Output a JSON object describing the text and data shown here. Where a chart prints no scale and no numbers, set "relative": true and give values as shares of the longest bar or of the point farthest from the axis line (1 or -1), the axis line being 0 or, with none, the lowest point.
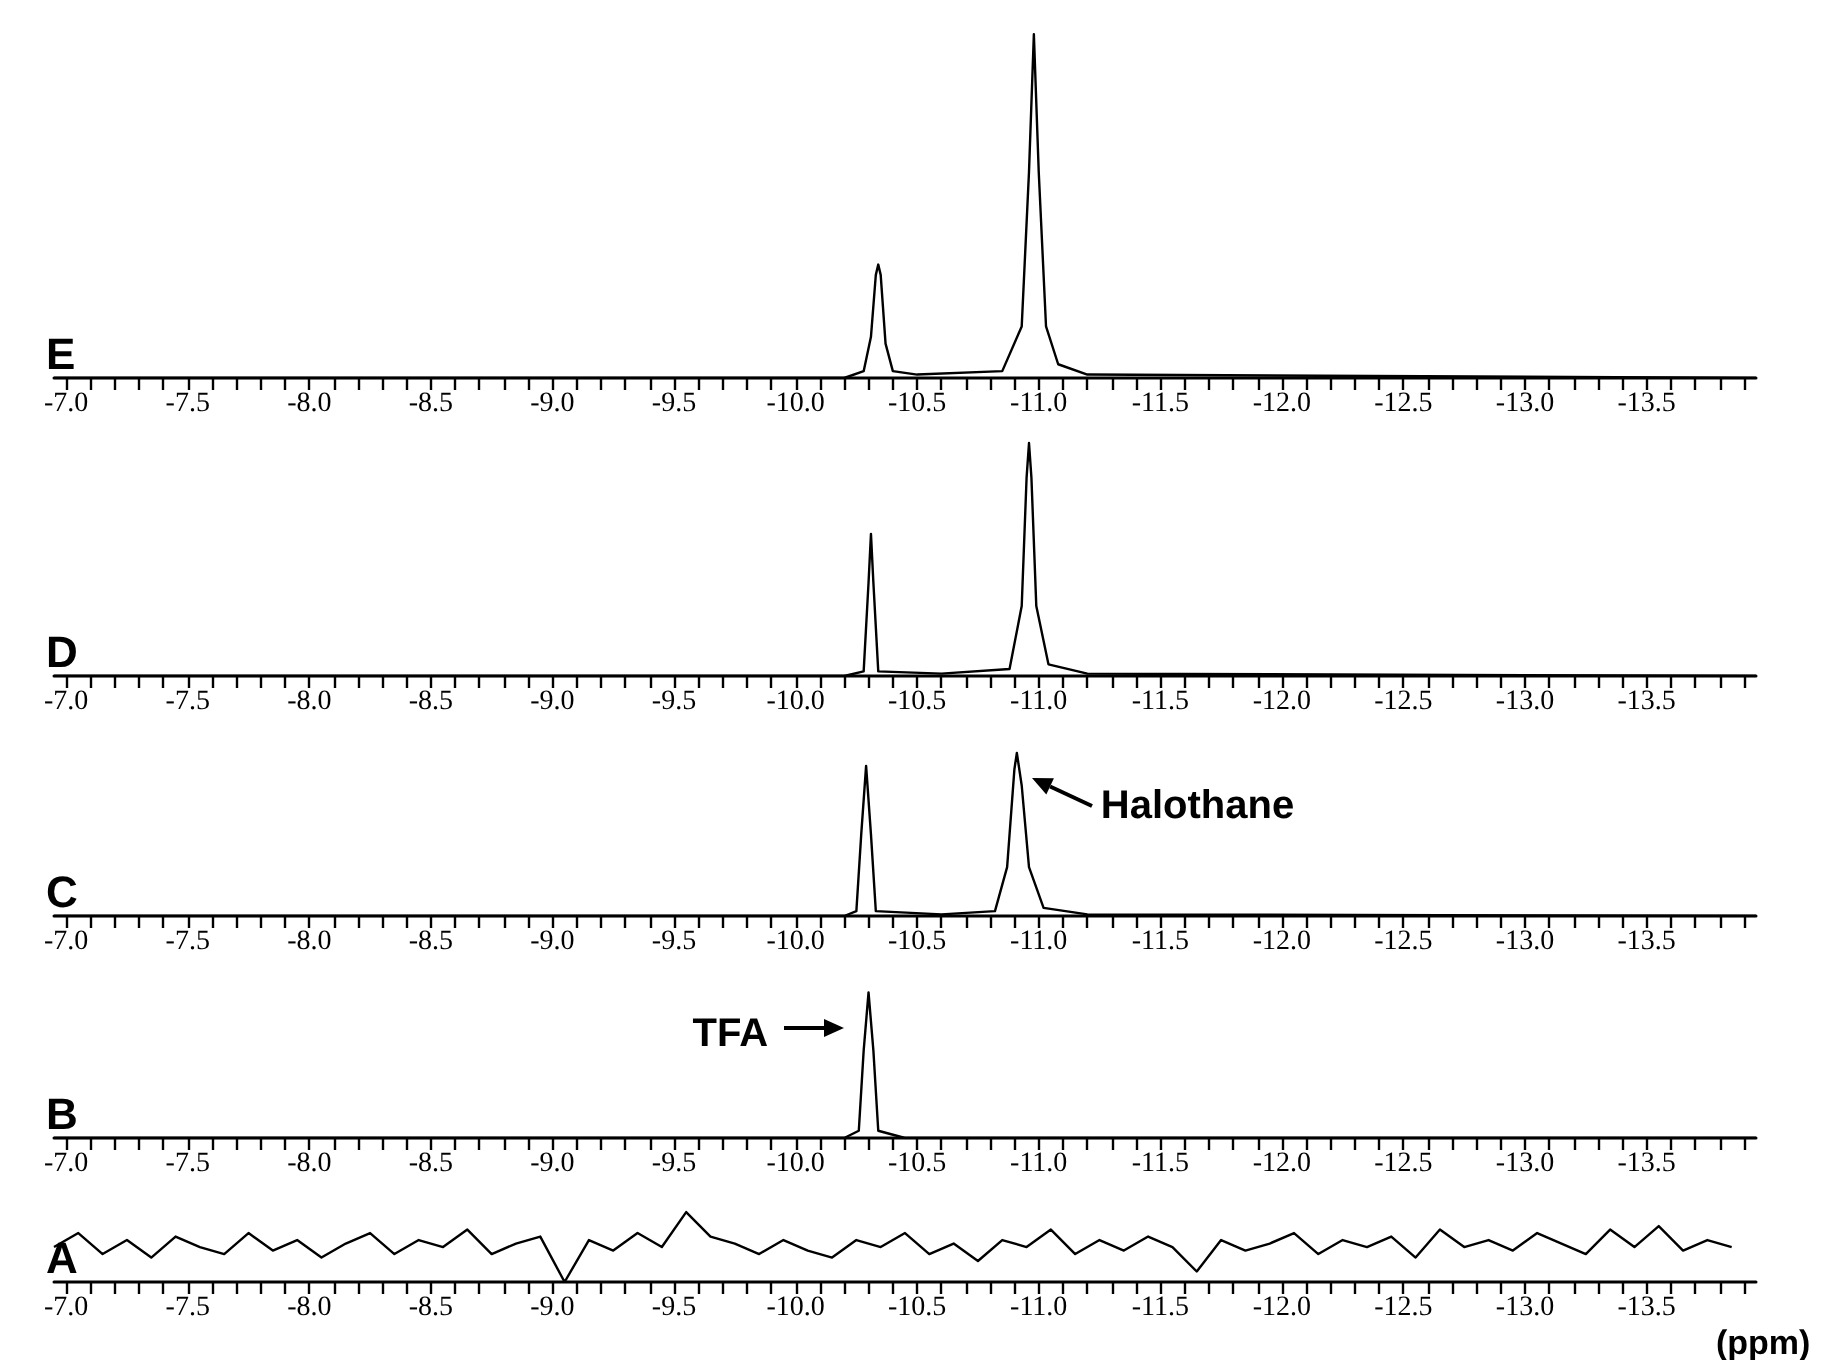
{
  "chart_data": [
    {
      "type": "line",
      "title": "E",
      "relative": true,
      "xlim": [
        -6.95,
        -13.95
      ],
      "xticks": [
        {
          "value": -7.0,
          "label": "-7.0"
        },
        {
          "value": -7.1,
          "label": null
        },
        {
          "value": -7.2,
          "label": null
        },
        {
          "value": -7.3,
          "label": null
        },
        {
          "value": -7.4,
          "label": null
        },
        {
          "value": -7.5,
          "label": "-7.5"
        },
        {
          "value": -7.6,
          "label": null
        },
        {
          "value": -7.7,
          "label": null
        },
        {
          "value": -7.8,
          "label": null
        },
        {
          "value": -7.9,
          "label": null
        },
        {
          "value": -8.0,
          "label": "-8.0"
        },
        {
          "value": -8.1,
          "label": null
        },
        {
          "value": -8.2,
          "label": null
        },
        {
          "value": -8.3,
          "label": null
        },
        {
          "value": -8.4,
          "label": null
        },
        {
          "value": -8.5,
          "label": "-8.5"
        },
        {
          "value": -8.6,
          "label": null
        },
        {
          "value": -8.7,
          "label": null
        },
        {
          "value": -8.8,
          "label": null
        },
        {
          "value": -8.9,
          "label": null
        },
        {
          "value": -9.0,
          "label": "-9.0"
        },
        {
          "value": -9.1,
          "label": null
        },
        {
          "value": -9.2,
          "label": null
        },
        {
          "value": -9.3,
          "label": null
        },
        {
          "value": -9.4,
          "label": null
        },
        {
          "value": -9.5,
          "label": "-9.5"
        },
        {
          "value": -9.6,
          "label": null
        },
        {
          "value": -9.7,
          "label": null
        },
        {
          "value": -9.8,
          "label": null
        },
        {
          "value": -9.9,
          "label": null
        },
        {
          "value": -10.0,
          "label": "-10.0"
        },
        {
          "value": -10.1,
          "label": null
        },
        {
          "value": -10.2,
          "label": null
        },
        {
          "value": -10.3,
          "label": null
        },
        {
          "value": -10.4,
          "label": null
        },
        {
          "value": -10.5,
          "label": "-10.5"
        },
        {
          "value": -10.6,
          "label": null
        },
        {
          "value": -10.7,
          "label": null
        },
        {
          "value": -10.8,
          "label": null
        },
        {
          "value": -10.9,
          "label": null
        },
        {
          "value": -11.0,
          "label": "-11.0"
        },
        {
          "value": -11.1,
          "label": null
        },
        {
          "value": -11.2,
          "label": null
        },
        {
          "value": -11.3,
          "label": null
        },
        {
          "value": -11.4,
          "label": null
        },
        {
          "value": -11.5,
          "label": "-11.5"
        },
        {
          "value": -11.6,
          "label": null
        },
        {
          "value": -11.7,
          "label": null
        },
        {
          "value": -11.8,
          "label": null
        },
        {
          "value": -11.9,
          "label": null
        },
        {
          "value": -12.0,
          "label": "-12.0"
        },
        {
          "value": -12.1,
          "label": null
        },
        {
          "value": -12.2,
          "label": null
        },
        {
          "value": -12.3,
          "label": null
        },
        {
          "value": -12.4,
          "label": null
        },
        {
          "value": -12.5,
          "label": "-12.5"
        },
        {
          "value": -12.6,
          "label": null
        },
        {
          "value": -12.7,
          "label": null
        },
        {
          "value": -12.8,
          "label": null
        },
        {
          "value": -12.9,
          "label": null
        },
        {
          "value": -13.0,
          "label": "-13.0"
        },
        {
          "value": -13.1,
          "label": null
        },
        {
          "value": -13.2,
          "label": null
        },
        {
          "value": -13.3,
          "label": null
        },
        {
          "value": -13.4,
          "label": null
        },
        {
          "value": -13.5,
          "label": "-13.5"
        },
        {
          "value": -13.6,
          "label": null
        },
        {
          "value": -13.7,
          "label": null
        },
        {
          "value": -13.8,
          "label": null
        },
        {
          "value": -13.9,
          "label": null
        }
      ],
      "x": [
        -6.95,
        -9.0,
        -10.2,
        -10.28,
        -10.31,
        -10.33,
        -10.34,
        -10.35,
        -10.37,
        -10.4,
        -10.5,
        -10.85,
        -10.93,
        -10.96,
        -10.98,
        -11.0,
        -11.03,
        -11.08,
        -11.2,
        -13.95
      ],
      "series": [
        {
          "color": "#000000",
          "values": [
            0,
            0,
            0,
            0.02,
            0.12,
            0.3,
            0.33,
            0.3,
            0.1,
            0.02,
            0.01,
            0.02,
            0.15,
            0.6,
            1,
            0.6,
            0.15,
            0.04,
            0.01,
            0
          ]
        }
      ]
    },
    {
      "type": "line",
      "title": "D",
      "relative": true,
      "xlim": [
        -6.95,
        -13.95
      ],
      "xticks": [
        {
          "value": -7.0,
          "label": "-7.0"
        },
        {
          "value": -7.1,
          "label": null
        },
        {
          "value": -7.2,
          "label": null
        },
        {
          "value": -7.3,
          "label": null
        },
        {
          "value": -7.4,
          "label": null
        },
        {
          "value": -7.5,
          "label": "-7.5"
        },
        {
          "value": -7.6,
          "label": null
        },
        {
          "value": -7.7,
          "label": null
        },
        {
          "value": -7.8,
          "label": null
        },
        {
          "value": -7.9,
          "label": null
        },
        {
          "value": -8.0,
          "label": "-8.0"
        },
        {
          "value": -8.1,
          "label": null
        },
        {
          "value": -8.2,
          "label": null
        },
        {
          "value": -8.3,
          "label": null
        },
        {
          "value": -8.4,
          "label": null
        },
        {
          "value": -8.5,
          "label": "-8.5"
        },
        {
          "value": -8.6,
          "label": null
        },
        {
          "value": -8.7,
          "label": null
        },
        {
          "value": -8.8,
          "label": null
        },
        {
          "value": -8.9,
          "label": null
        },
        {
          "value": -9.0,
          "label": "-9.0"
        },
        {
          "value": -9.1,
          "label": null
        },
        {
          "value": -9.2,
          "label": null
        },
        {
          "value": -9.3,
          "label": null
        },
        {
          "value": -9.4,
          "label": null
        },
        {
          "value": -9.5,
          "label": "-9.5"
        },
        {
          "value": -9.6,
          "label": null
        },
        {
          "value": -9.7,
          "label": null
        },
        {
          "value": -9.8,
          "label": null
        },
        {
          "value": -9.9,
          "label": null
        },
        {
          "value": -10.0,
          "label": "-10.0"
        },
        {
          "value": -10.1,
          "label": null
        },
        {
          "value": -10.2,
          "label": null
        },
        {
          "value": -10.3,
          "label": null
        },
        {
          "value": -10.4,
          "label": null
        },
        {
          "value": -10.5,
          "label": "-10.5"
        },
        {
          "value": -10.6,
          "label": null
        },
        {
          "value": -10.7,
          "label": null
        },
        {
          "value": -10.8,
          "label": null
        },
        {
          "value": -10.9,
          "label": null
        },
        {
          "value": -11.0,
          "label": "-11.0"
        },
        {
          "value": -11.1,
          "label": null
        },
        {
          "value": -11.2,
          "label": null
        },
        {
          "value": -11.3,
          "label": null
        },
        {
          "value": -11.4,
          "label": null
        },
        {
          "value": -11.5,
          "label": "-11.5"
        },
        {
          "value": -11.6,
          "label": null
        },
        {
          "value": -11.7,
          "label": null
        },
        {
          "value": -11.8,
          "label": null
        },
        {
          "value": -11.9,
          "label": null
        },
        {
          "value": -12.0,
          "label": "-12.0"
        },
        {
          "value": -12.1,
          "label": null
        },
        {
          "value": -12.2,
          "label": null
        },
        {
          "value": -12.3,
          "label": null
        },
        {
          "value": -12.4,
          "label": null
        },
        {
          "value": -12.5,
          "label": "-12.5"
        },
        {
          "value": -12.6,
          "label": null
        },
        {
          "value": -12.7,
          "label": null
        },
        {
          "value": -12.8,
          "label": null
        },
        {
          "value": -12.9,
          "label": null
        },
        {
          "value": -13.0,
          "label": "-13.0"
        },
        {
          "value": -13.1,
          "label": null
        },
        {
          "value": -13.2,
          "label": null
        },
        {
          "value": -13.3,
          "label": null
        },
        {
          "value": -13.4,
          "label": null
        },
        {
          "value": -13.5,
          "label": "-13.5"
        },
        {
          "value": -13.6,
          "label": null
        },
        {
          "value": -13.7,
          "label": null
        },
        {
          "value": -13.8,
          "label": null
        },
        {
          "value": -13.9,
          "label": null
        }
      ],
      "x": [
        -6.95,
        -10.2,
        -10.28,
        -10.3,
        -10.31,
        -10.32,
        -10.34,
        -10.6,
        -10.88,
        -10.93,
        -10.95,
        -10.96,
        -10.97,
        -10.99,
        -11.04,
        -11.2,
        -13.95
      ],
      "series": [
        {
          "color": "#000000",
          "values": [
            0,
            0,
            0.02,
            0.4,
            0.61,
            0.4,
            0.02,
            0.01,
            0.03,
            0.3,
            0.85,
            1,
            0.85,
            0.3,
            0.05,
            0.01,
            0
          ]
        }
      ]
    },
    {
      "type": "line",
      "title": "C",
      "relative": true,
      "xlim": [
        -6.95,
        -13.95
      ],
      "annotations": [
        {
          "text": "Halothane",
          "x": -10.91,
          "y": 0.9
        }
      ],
      "xticks": [
        {
          "value": -7.0,
          "label": "-7.0"
        },
        {
          "value": -7.1,
          "label": null
        },
        {
          "value": -7.2,
          "label": null
        },
        {
          "value": -7.3,
          "label": null
        },
        {
          "value": -7.4,
          "label": null
        },
        {
          "value": -7.5,
          "label": "-7.5"
        },
        {
          "value": -7.6,
          "label": null
        },
        {
          "value": -7.7,
          "label": null
        },
        {
          "value": -7.8,
          "label": null
        },
        {
          "value": -7.9,
          "label": null
        },
        {
          "value": -8.0,
          "label": "-8.0"
        },
        {
          "value": -8.1,
          "label": null
        },
        {
          "value": -8.2,
          "label": null
        },
        {
          "value": -8.3,
          "label": null
        },
        {
          "value": -8.4,
          "label": null
        },
        {
          "value": -8.5,
          "label": "-8.5"
        },
        {
          "value": -8.6,
          "label": null
        },
        {
          "value": -8.7,
          "label": null
        },
        {
          "value": -8.8,
          "label": null
        },
        {
          "value": -8.9,
          "label": null
        },
        {
          "value": -9.0,
          "label": "-9.0"
        },
        {
          "value": -9.1,
          "label": null
        },
        {
          "value": -9.2,
          "label": null
        },
        {
          "value": -9.3,
          "label": null
        },
        {
          "value": -9.4,
          "label": null
        },
        {
          "value": -9.5,
          "label": "-9.5"
        },
        {
          "value": -9.6,
          "label": null
        },
        {
          "value": -9.7,
          "label": null
        },
        {
          "value": -9.8,
          "label": null
        },
        {
          "value": -9.9,
          "label": null
        },
        {
          "value": -10.0,
          "label": "-10.0"
        },
        {
          "value": -10.1,
          "label": null
        },
        {
          "value": -10.2,
          "label": null
        },
        {
          "value": -10.3,
          "label": null
        },
        {
          "value": -10.4,
          "label": null
        },
        {
          "value": -10.5,
          "label": "-10.5"
        },
        {
          "value": -10.6,
          "label": null
        },
        {
          "value": -10.7,
          "label": null
        },
        {
          "value": -10.8,
          "label": null
        },
        {
          "value": -10.9,
          "label": null
        },
        {
          "value": -11.0,
          "label": "-11.0"
        },
        {
          "value": -11.1,
          "label": null
        },
        {
          "value": -11.2,
          "label": null
        },
        {
          "value": -11.3,
          "label": null
        },
        {
          "value": -11.4,
          "label": null
        },
        {
          "value": -11.5,
          "label": "-11.5"
        },
        {
          "value": -11.6,
          "label": null
        },
        {
          "value": -11.7,
          "label": null
        },
        {
          "value": -11.8,
          "label": null
        },
        {
          "value": -11.9,
          "label": null
        },
        {
          "value": -12.0,
          "label": "-12.0"
        },
        {
          "value": -12.1,
          "label": null
        },
        {
          "value": -12.2,
          "label": null
        },
        {
          "value": -12.3,
          "label": null
        },
        {
          "value": -12.4,
          "label": null
        },
        {
          "value": -12.5,
          "label": "-12.5"
        },
        {
          "value": -12.6,
          "label": null
        },
        {
          "value": -12.7,
          "label": null
        },
        {
          "value": -12.8,
          "label": null
        },
        {
          "value": -12.9,
          "label": null
        },
        {
          "value": -13.0,
          "label": "-13.0"
        },
        {
          "value": -13.1,
          "label": null
        },
        {
          "value": -13.2,
          "label": null
        },
        {
          "value": -13.3,
          "label": null
        },
        {
          "value": -13.4,
          "label": null
        },
        {
          "value": -13.5,
          "label": "-13.5"
        },
        {
          "value": -13.6,
          "label": null
        },
        {
          "value": -13.7,
          "label": null
        },
        {
          "value": -13.8,
          "label": null
        },
        {
          "value": -13.9,
          "label": null
        }
      ],
      "x": [
        -6.95,
        -10.2,
        -10.25,
        -10.27,
        -10.29,
        -10.31,
        -10.33,
        -10.6,
        -10.82,
        -10.87,
        -10.9,
        -10.91,
        -10.93,
        -10.96,
        -11.02,
        -11.2,
        -13.95
      ],
      "series": [
        {
          "color": "#000000",
          "values": [
            0,
            0,
            0.03,
            0.5,
            0.92,
            0.5,
            0.03,
            0.01,
            0.03,
            0.3,
            0.9,
            1,
            0.8,
            0.3,
            0.05,
            0.01,
            0
          ]
        }
      ]
    },
    {
      "type": "line",
      "title": "B",
      "relative": true,
      "xlim": [
        -6.95,
        -13.95
      ],
      "annotations": [
        {
          "text": "TFA",
          "x": -10.3,
          "y": 0.75
        }
      ],
      "xticks": [
        {
          "value": -7.0,
          "label": "-7.0"
        },
        {
          "value": -7.1,
          "label": null
        },
        {
          "value": -7.2,
          "label": null
        },
        {
          "value": -7.3,
          "label": null
        },
        {
          "value": -7.4,
          "label": null
        },
        {
          "value": -7.5,
          "label": "-7.5"
        },
        {
          "value": -7.6,
          "label": null
        },
        {
          "value": -7.7,
          "label": null
        },
        {
          "value": -7.8,
          "label": null
        },
        {
          "value": -7.9,
          "label": null
        },
        {
          "value": -8.0,
          "label": "-8.0"
        },
        {
          "value": -8.1,
          "label": null
        },
        {
          "value": -8.2,
          "label": null
        },
        {
          "value": -8.3,
          "label": null
        },
        {
          "value": -8.4,
          "label": null
        },
        {
          "value": -8.5,
          "label": "-8.5"
        },
        {
          "value": -8.6,
          "label": null
        },
        {
          "value": -8.7,
          "label": null
        },
        {
          "value": -8.8,
          "label": null
        },
        {
          "value": -8.9,
          "label": null
        },
        {
          "value": -9.0,
          "label": "-9.0"
        },
        {
          "value": -9.1,
          "label": null
        },
        {
          "value": -9.2,
          "label": null
        },
        {
          "value": -9.3,
          "label": null
        },
        {
          "value": -9.4,
          "label": null
        },
        {
          "value": -9.5,
          "label": "-9.5"
        },
        {
          "value": -9.6,
          "label": null
        },
        {
          "value": -9.7,
          "label": null
        },
        {
          "value": -9.8,
          "label": null
        },
        {
          "value": -9.9,
          "label": null
        },
        {
          "value": -10.0,
          "label": "-10.0"
        },
        {
          "value": -10.1,
          "label": null
        },
        {
          "value": -10.2,
          "label": null
        },
        {
          "value": -10.3,
          "label": null
        },
        {
          "value": -10.4,
          "label": null
        },
        {
          "value": -10.5,
          "label": "-10.5"
        },
        {
          "value": -10.6,
          "label": null
        },
        {
          "value": -10.7,
          "label": null
        },
        {
          "value": -10.8,
          "label": null
        },
        {
          "value": -10.9,
          "label": null
        },
        {
          "value": -11.0,
          "label": "-11.0"
        },
        {
          "value": -11.1,
          "label": null
        },
        {
          "value": -11.2,
          "label": null
        },
        {
          "value": -11.3,
          "label": null
        },
        {
          "value": -11.4,
          "label": null
        },
        {
          "value": -11.5,
          "label": "-11.5"
        },
        {
          "value": -11.6,
          "label": null
        },
        {
          "value": -11.7,
          "label": null
        },
        {
          "value": -11.8,
          "label": null
        },
        {
          "value": -11.9,
          "label": null
        },
        {
          "value": -12.0,
          "label": "-12.0"
        },
        {
          "value": -12.1,
          "label": null
        },
        {
          "value": -12.2,
          "label": null
        },
        {
          "value": -12.3,
          "label": null
        },
        {
          "value": -12.4,
          "label": null
        },
        {
          "value": -12.5,
          "label": "-12.5"
        },
        {
          "value": -12.6,
          "label": null
        },
        {
          "value": -12.7,
          "label": null
        },
        {
          "value": -12.8,
          "label": null
        },
        {
          "value": -12.9,
          "label": null
        },
        {
          "value": -13.0,
          "label": "-13.0"
        },
        {
          "value": -13.1,
          "label": null
        },
        {
          "value": -13.2,
          "label": null
        },
        {
          "value": -13.3,
          "label": null
        },
        {
          "value": -13.4,
          "label": null
        },
        {
          "value": -13.5,
          "label": "-13.5"
        },
        {
          "value": -13.6,
          "label": null
        },
        {
          "value": -13.7,
          "label": null
        },
        {
          "value": -13.8,
          "label": null
        },
        {
          "value": -13.9,
          "label": null
        }
      ],
      "x": [
        -6.95,
        -10.2,
        -10.26,
        -10.28,
        -10.3,
        -10.32,
        -10.34,
        -10.45,
        -13.95
      ],
      "series": [
        {
          "color": "#000000",
          "values": [
            0,
            0,
            0.05,
            0.6,
            1,
            0.6,
            0.05,
            0,
            0
          ]
        }
      ]
    },
    {
      "type": "line",
      "title": "A",
      "relative": true,
      "xlim": [
        -6.95,
        -13.95
      ],
      "xlabel": "(ppm)",
      "xticks": [
        {
          "value": -7.0,
          "label": "-7.0"
        },
        {
          "value": -7.1,
          "label": null
        },
        {
          "value": -7.2,
          "label": null
        },
        {
          "value": -7.3,
          "label": null
        },
        {
          "value": -7.4,
          "label": null
        },
        {
          "value": -7.5,
          "label": "-7.5"
        },
        {
          "value": -7.6,
          "label": null
        },
        {
          "value": -7.7,
          "label": null
        },
        {
          "value": -7.8,
          "label": null
        },
        {
          "value": -7.9,
          "label": null
        },
        {
          "value": -8.0,
          "label": "-8.0"
        },
        {
          "value": -8.1,
          "label": null
        },
        {
          "value": -8.2,
          "label": null
        },
        {
          "value": -8.3,
          "label": null
        },
        {
          "value": -8.4,
          "label": null
        },
        {
          "value": -8.5,
          "label": "-8.5"
        },
        {
          "value": -8.6,
          "label": null
        },
        {
          "value": -8.7,
          "label": null
        },
        {
          "value": -8.8,
          "label": null
        },
        {
          "value": -8.9,
          "label": null
        },
        {
          "value": -9.0,
          "label": "-9.0"
        },
        {
          "value": -9.1,
          "label": null
        },
        {
          "value": -9.2,
          "label": null
        },
        {
          "value": -9.3,
          "label": null
        },
        {
          "value": -9.4,
          "label": null
        },
        {
          "value": -9.5,
          "label": "-9.5"
        },
        {
          "value": -9.6,
          "label": null
        },
        {
          "value": -9.7,
          "label": null
        },
        {
          "value": -9.8,
          "label": null
        },
        {
          "value": -9.9,
          "label": null
        },
        {
          "value": -10.0,
          "label": "-10.0"
        },
        {
          "value": -10.1,
          "label": null
        },
        {
          "value": -10.2,
          "label": null
        },
        {
          "value": -10.3,
          "label": null
        },
        {
          "value": -10.4,
          "label": null
        },
        {
          "value": -10.5,
          "label": "-10.5"
        },
        {
          "value": -10.6,
          "label": null
        },
        {
          "value": -10.7,
          "label": null
        },
        {
          "value": -10.8,
          "label": null
        },
        {
          "value": -10.9,
          "label": null
        },
        {
          "value": -11.0,
          "label": "-11.0"
        },
        {
          "value": -11.1,
          "label": null
        },
        {
          "value": -11.2,
          "label": null
        },
        {
          "value": -11.3,
          "label": null
        },
        {
          "value": -11.4,
          "label": null
        },
        {
          "value": -11.5,
          "label": "-11.5"
        },
        {
          "value": -11.6,
          "label": null
        },
        {
          "value": -11.7,
          "label": null
        },
        {
          "value": -11.8,
          "label": null
        },
        {
          "value": -11.9,
          "label": null
        },
        {
          "value": -12.0,
          "label": "-12.0"
        },
        {
          "value": -12.1,
          "label": null
        },
        {
          "value": -12.2,
          "label": null
        },
        {
          "value": -12.3,
          "label": null
        },
        {
          "value": -12.4,
          "label": null
        },
        {
          "value": -12.5,
          "label": "-12.5"
        },
        {
          "value": -12.6,
          "label": null
        },
        {
          "value": -12.7,
          "label": null
        },
        {
          "value": -12.8,
          "label": null
        },
        {
          "value": -12.9,
          "label": null
        },
        {
          "value": -13.0,
          "label": "-13.0"
        },
        {
          "value": -13.1,
          "label": null
        },
        {
          "value": -13.2,
          "label": null
        },
        {
          "value": -13.3,
          "label": null
        },
        {
          "value": -13.4,
          "label": null
        },
        {
          "value": -13.5,
          "label": "-13.5"
        },
        {
          "value": -13.6,
          "label": null
        },
        {
          "value": -13.7,
          "label": null
        },
        {
          "value": -13.8,
          "label": null
        },
        {
          "value": -13.9,
          "label": null
        }
      ],
      "x": [
        -6.95,
        -7.05,
        -7.15,
        -7.25,
        -7.35,
        -7.45,
        -7.55,
        -7.65,
        -7.75,
        -7.85,
        -7.95,
        -8.05,
        -8.15,
        -8.25,
        -8.35,
        -8.45,
        -8.55,
        -8.65,
        -8.75,
        -8.85,
        -8.95,
        -9.05,
        -9.15,
        -9.25,
        -9.35,
        -9.45,
        -9.55,
        -9.65,
        -9.75,
        -9.85,
        -9.95,
        -10.05,
        -10.15,
        -10.25,
        -10.35,
        -10.45,
        -10.55,
        -10.65,
        -10.75,
        -10.85,
        -10.95,
        -11.05,
        -11.15,
        -11.25,
        -11.35,
        -11.45,
        -11.55,
        -11.65,
        -11.75,
        -11.85,
        -11.95,
        -12.05,
        -12.15,
        -12.25,
        -12.35,
        -12.45,
        -12.55,
        -12.65,
        -12.75,
        -12.85,
        -12.95,
        -13.05,
        -13.15,
        -13.25,
        -13.35,
        -13.45,
        -13.55,
        -13.65,
        -13.75,
        -13.85
      ],
      "series": [
        {
          "color": "#000000",
          "values": [
            0.5,
            0.7,
            0.4,
            0.6,
            0.35,
            0.65,
            0.5,
            0.4,
            0.7,
            0.45,
            0.6,
            0.35,
            0.55,
            0.7,
            0.4,
            0.6,
            0.5,
            0.75,
            0.4,
            0.55,
            0.65,
            0,
            0.6,
            0.45,
            0.7,
            0.5,
            1,
            0.65,
            0.55,
            0.4,
            0.6,
            0.45,
            0.35,
            0.6,
            0.5,
            0.7,
            0.4,
            0.55,
            0.3,
            0.6,
            0.5,
            0.75,
            0.4,
            0.6,
            0.45,
            0.65,
            0.5,
            0.15,
            0.6,
            0.45,
            0.55,
            0.7,
            0.4,
            0.6,
            0.5,
            0.65,
            0.35,
            0.75,
            0.5,
            0.6,
            0.45,
            0.7,
            0.55,
            0.4,
            0.75,
            0.5,
            0.8,
            0.45,
            0.6,
            0.5
          ]
        }
      ]
    }
  ]
}
